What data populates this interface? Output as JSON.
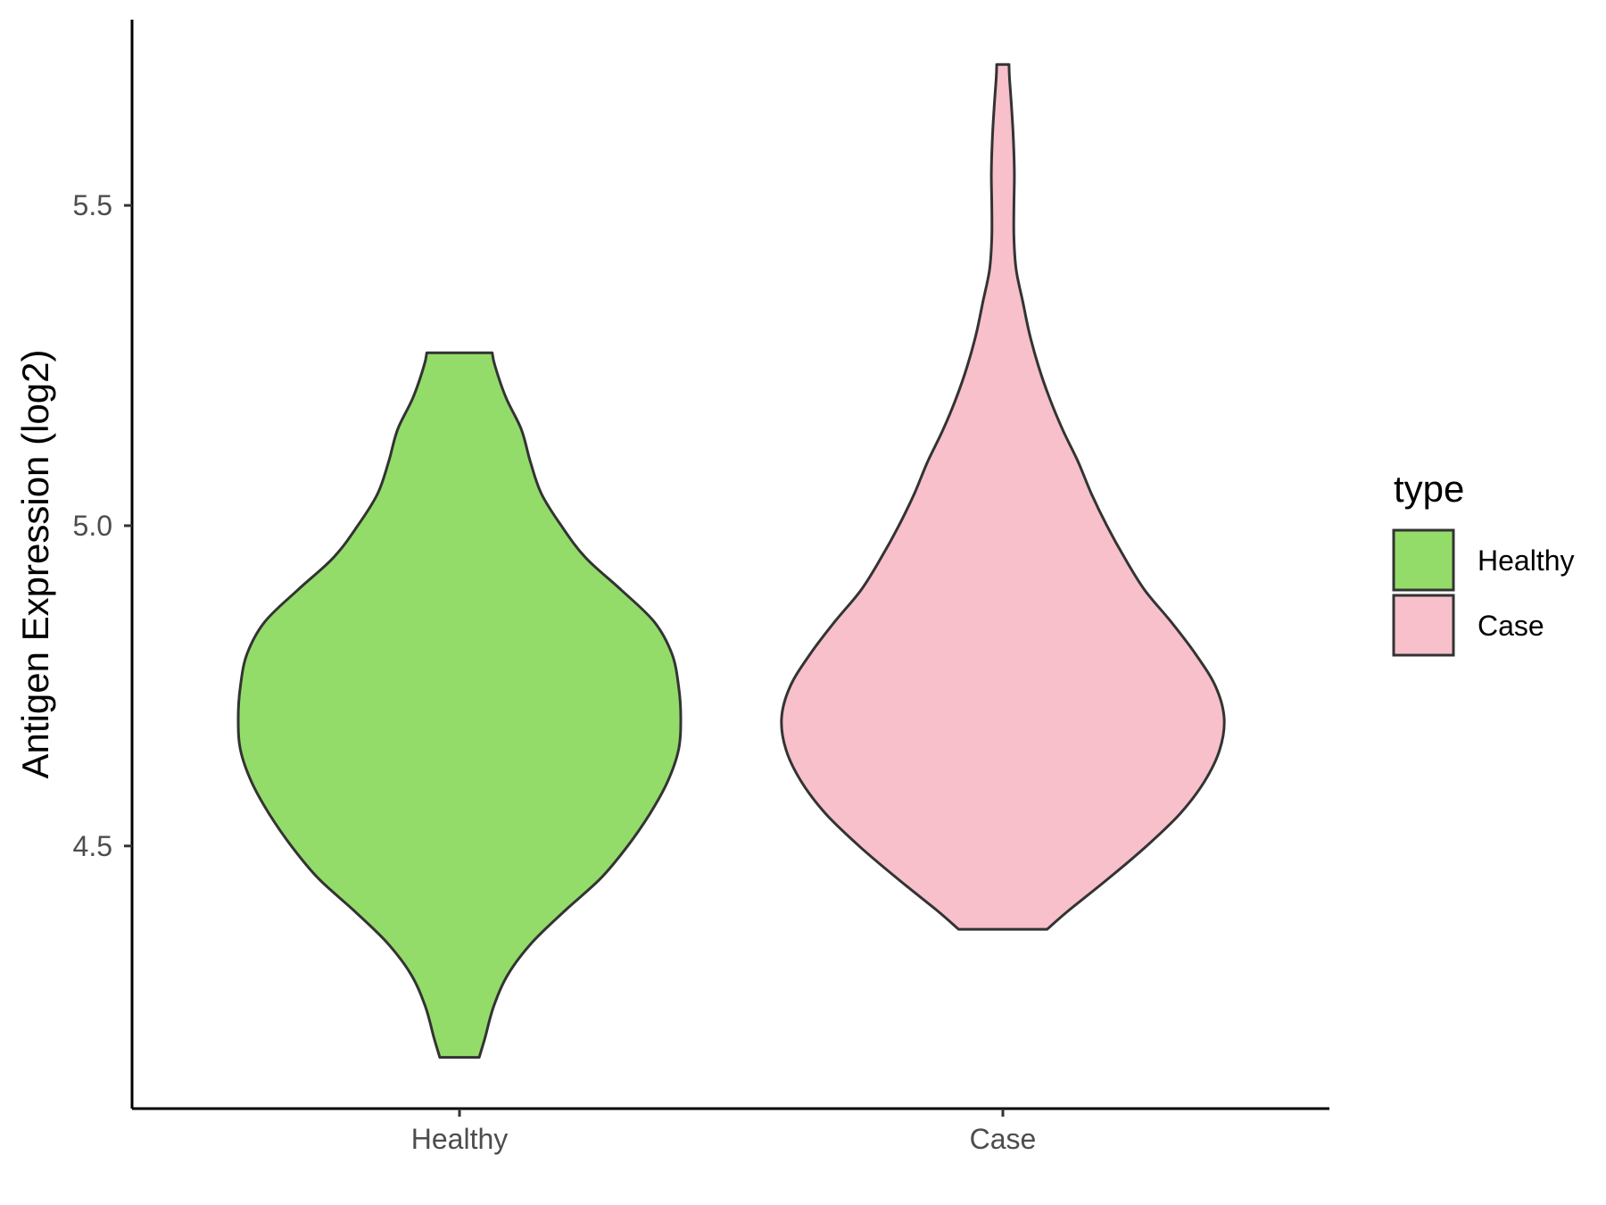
{
  "chart_data": {
    "type": "violin",
    "categories": [
      "Healthy",
      "Case"
    ],
    "ylabel": "Antigen Expression (log2)",
    "xlabel": "",
    "ylim": [
      4.09,
      5.79
    ],
    "yticks": [
      4.5,
      5.0,
      5.5
    ],
    "ytick_labels": [
      "4.5",
      "5.0",
      "5.5"
    ],
    "legend": {
      "title": "type",
      "placement": "right",
      "entries": [
        "Healthy",
        "Case"
      ]
    },
    "series": [
      {
        "name": "Healthy",
        "color": "#93DC6A",
        "range": [
          4.17,
          5.27
        ],
        "profile": [
          [
            4.17,
            0.089
          ],
          [
            4.2,
            0.115
          ],
          [
            4.25,
            0.155
          ],
          [
            4.3,
            0.22
          ],
          [
            4.35,
            0.33
          ],
          [
            4.4,
            0.48
          ],
          [
            4.45,
            0.64
          ],
          [
            4.5,
            0.76
          ],
          [
            4.55,
            0.86
          ],
          [
            4.6,
            0.94
          ],
          [
            4.65,
            0.99
          ],
          [
            4.7,
            1.0
          ],
          [
            4.75,
            0.99
          ],
          [
            4.8,
            0.96
          ],
          [
            4.85,
            0.88
          ],
          [
            4.9,
            0.73
          ],
          [
            4.95,
            0.57
          ],
          [
            5.0,
            0.46
          ],
          [
            5.05,
            0.37
          ],
          [
            5.1,
            0.32
          ],
          [
            5.15,
            0.28
          ],
          [
            5.2,
            0.21
          ],
          [
            5.25,
            0.16
          ],
          [
            5.27,
            0.148
          ]
        ]
      },
      {
        "name": "Case",
        "color": "#F7C0CB",
        "range": [
          4.37,
          5.72
        ],
        "profile": [
          [
            4.37,
            0.2
          ],
          [
            4.4,
            0.3
          ],
          [
            4.45,
            0.48
          ],
          [
            4.5,
            0.65
          ],
          [
            4.55,
            0.8
          ],
          [
            4.6,
            0.91
          ],
          [
            4.65,
            0.98
          ],
          [
            4.7,
            1.0
          ],
          [
            4.75,
            0.96
          ],
          [
            4.8,
            0.87
          ],
          [
            4.85,
            0.76
          ],
          [
            4.9,
            0.64
          ],
          [
            4.95,
            0.55
          ],
          [
            5.0,
            0.47
          ],
          [
            5.05,
            0.4
          ],
          [
            5.1,
            0.34
          ],
          [
            5.15,
            0.27
          ],
          [
            5.2,
            0.21
          ],
          [
            5.25,
            0.16
          ],
          [
            5.3,
            0.12
          ],
          [
            5.35,
            0.09
          ],
          [
            5.4,
            0.06
          ],
          [
            5.45,
            0.05
          ],
          [
            5.5,
            0.05
          ],
          [
            5.55,
            0.052
          ],
          [
            5.6,
            0.048
          ],
          [
            5.65,
            0.04
          ],
          [
            5.7,
            0.03
          ],
          [
            5.72,
            0.028
          ]
        ]
      }
    ],
    "grid": false
  }
}
